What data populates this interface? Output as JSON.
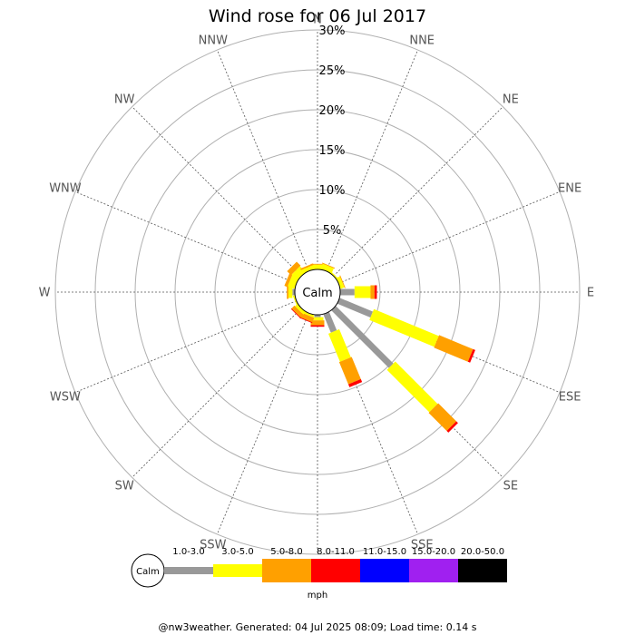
{
  "chart_data": {
    "type": "wind-rose",
    "title": "Wind rose for 06 Jul 2017",
    "radial_axis": {
      "max": 30,
      "step": 5,
      "unit": "%",
      "tick_labels": [
        "5%",
        "10%",
        "15%",
        "20%",
        "25%",
        "30%"
      ]
    },
    "directions": [
      "N",
      "NNE",
      "NE",
      "ENE",
      "E",
      "ESE",
      "SE",
      "SSE",
      "S",
      "SSW",
      "SW",
      "WSW",
      "W",
      "WNW",
      "NW",
      "NNW"
    ],
    "calm_label": "Calm",
    "speed_bins": [
      {
        "label": "1.0-3.0",
        "color": "#999999"
      },
      {
        "label": "3.0-5.0",
        "color": "#ffff00"
      },
      {
        "label": "5.0-8.0",
        "color": "#ffa000"
      },
      {
        "label": "8.0-11.0",
        "color": "#ff0000"
      },
      {
        "label": "11.0-15.0",
        "color": "#0000ff"
      },
      {
        "label": "15.0-20.0",
        "color": "#a020f0"
      },
      {
        "label": "20.0-50.0",
        "color": "#000000"
      }
    ],
    "units": "mph",
    "series": [
      {
        "direction": "N",
        "values": [
          0.0,
          0.6,
          0.1,
          0.0,
          0,
          0,
          0
        ]
      },
      {
        "direction": "NNE",
        "values": [
          0.0,
          0.7,
          0.1,
          0.0,
          0,
          0,
          0
        ]
      },
      {
        "direction": "NE",
        "values": [
          0.0,
          0.2,
          0.0,
          0.0,
          0,
          0,
          0
        ]
      },
      {
        "direction": "ENE",
        "values": [
          0.0,
          0.5,
          0.1,
          0.0,
          0,
          0,
          0
        ]
      },
      {
        "direction": "E",
        "values": [
          1.8,
          2.0,
          0.5,
          0.3,
          0,
          0,
          0
        ]
      },
      {
        "direction": "ESE",
        "values": [
          4.5,
          8.8,
          4.6,
          0.3,
          0,
          0,
          0
        ]
      },
      {
        "direction": "SE",
        "values": [
          10.2,
          7.5,
          3.2,
          0.3,
          0,
          0,
          0
        ]
      },
      {
        "direction": "SSE",
        "values": [
          2.5,
          3.8,
          3.0,
          0.4,
          0,
          0,
          0
        ]
      },
      {
        "direction": "S",
        "values": [
          0.3,
          0.4,
          0.6,
          0.2,
          0,
          0,
          0
        ]
      },
      {
        "direction": "SSW",
        "values": [
          0.0,
          0.3,
          0.6,
          0.1,
          0,
          0,
          0
        ]
      },
      {
        "direction": "SW",
        "values": [
          0.0,
          0.4,
          0.5,
          0.1,
          0,
          0,
          0
        ]
      },
      {
        "direction": "WSW",
        "values": [
          0.0,
          0.2,
          0.0,
          0.0,
          0,
          0,
          0
        ]
      },
      {
        "direction": "W",
        "values": [
          0.3,
          0.5,
          0.2,
          0.0,
          0,
          0,
          0
        ]
      },
      {
        "direction": "WNW",
        "values": [
          0.0,
          0.9,
          0.4,
          0.0,
          0,
          0,
          0
        ]
      },
      {
        "direction": "NW",
        "values": [
          0.0,
          1.0,
          0.7,
          0.0,
          0,
          0,
          0
        ]
      },
      {
        "direction": "NNW",
        "values": [
          0.0,
          0.5,
          0.2,
          0.0,
          0,
          0,
          0
        ]
      }
    ],
    "grid": true
  },
  "footer": "@nw3weather. Generated: 04 Jul 2025 08:09; Load time: 0.14 s"
}
